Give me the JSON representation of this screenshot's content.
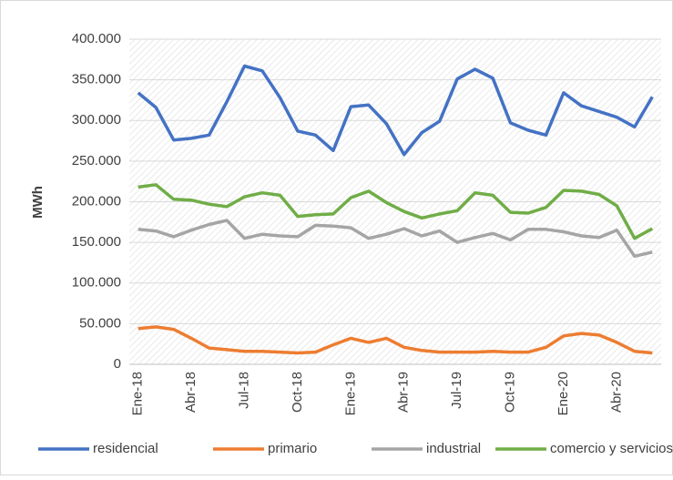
{
  "chart_data": {
    "type": "line",
    "y_label": "MWh",
    "categories": [
      "Ene-18",
      null,
      null,
      "Abr-18",
      null,
      null,
      "Jul-18",
      null,
      null,
      "Oct-18",
      null,
      null,
      "Ene-19",
      null,
      null,
      "Abr-19",
      null,
      null,
      "Jul-19",
      null,
      null,
      "Oct-19",
      null,
      null,
      "Ene-20",
      null,
      null,
      "Abr-20",
      null,
      null
    ],
    "series": [
      {
        "name": "residencial",
        "color": "#4472c4",
        "values": [
          334000,
          316000,
          276000,
          278000,
          282000,
          323000,
          367000,
          361000,
          328000,
          287000,
          282000,
          263000,
          317000,
          319000,
          296000,
          258000,
          285000,
          299000,
          351000,
          363000,
          352000,
          297000,
          288000,
          282000,
          334000,
          318000,
          311000,
          304000,
          292000,
          329000
        ]
      },
      {
        "name": "primario",
        "color": "#ed7d31",
        "values": [
          44000,
          46000,
          43000,
          32000,
          20000,
          18000,
          16000,
          16000,
          15000,
          14000,
          15000,
          24000,
          32000,
          27000,
          32000,
          21000,
          17000,
          15000,
          15000,
          15000,
          16000,
          15000,
          15000,
          21000,
          35000,
          38000,
          36000,
          27000,
          16000,
          14000
        ]
      },
      {
        "name": "industrial",
        "color": "#a5a5a5",
        "values": [
          166000,
          164000,
          157000,
          165000,
          172000,
          177000,
          155000,
          160000,
          158000,
          157000,
          171000,
          170000,
          168000,
          155000,
          160000,
          167000,
          158000,
          164000,
          150000,
          156000,
          161000,
          153000,
          166000,
          166000,
          163000,
          158000,
          156000,
          165000,
          133000,
          138000
        ]
      },
      {
        "name": "comercio y servicios",
        "color": "#70ad47",
        "values": [
          218000,
          221000,
          203000,
          202000,
          197000,
          194000,
          206000,
          211000,
          208000,
          182000,
          184000,
          185000,
          205000,
          213000,
          199000,
          188000,
          180000,
          185000,
          189000,
          211000,
          208000,
          187000,
          186000,
          193000,
          214000,
          213000,
          209000,
          195000,
          155000,
          167000
        ]
      }
    ],
    "ylim": [
      0,
      400000
    ],
    "yticks": [
      0,
      {
        "value": 50000,
        "label": "50.000"
      },
      {
        "value": 100000,
        "label": "100.000"
      },
      {
        "value": 150000,
        "label": "150.000"
      },
      {
        "value": 200000,
        "label": "200.000"
      },
      {
        "value": 250000,
        "label": "250.000"
      },
      {
        "value": 300000,
        "label": "300.000"
      },
      {
        "value": 350000,
        "label": "350.000"
      },
      {
        "value": 400000,
        "label": "400.000"
      }
    ],
    "grid": true,
    "legend": "bottom"
  }
}
